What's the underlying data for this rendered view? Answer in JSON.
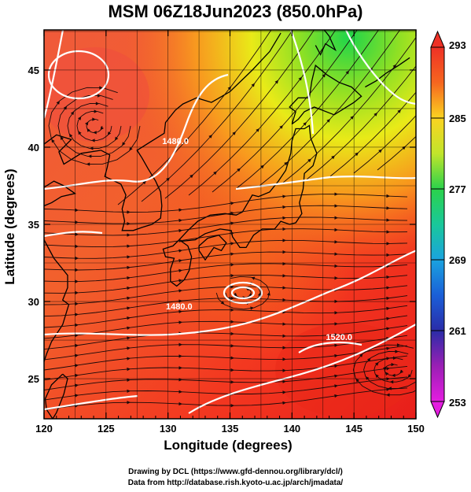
{
  "title": "MSM 06Z18Jun2023 (850.0hPa)",
  "credit_line1": "Drawing by DCL (https://www.gfd-dennou.org/library/dcl/)",
  "credit_line2": "Data from http://database.rish.kyoto-u.ac.jp/arch/jmadata/",
  "chart_data": {
    "type": "heatmap",
    "xlabel": "Longitude (degrees)",
    "ylabel": "Latitude  (degrees)",
    "xlim": [
      120,
      150
    ],
    "ylim": [
      22.4,
      47.6
    ],
    "x_ticks": [
      120,
      125,
      130,
      135,
      140,
      145,
      150
    ],
    "y_ticks": [
      25,
      30,
      35,
      40,
      45
    ],
    "grid": true,
    "colorbar": {
      "min": 253,
      "max": 293,
      "tick_values": [
        293,
        285,
        277,
        269,
        261,
        253
      ],
      "tick_labels": [
        "293",
        "285",
        "277",
        "269",
        "261",
        "253"
      ]
    },
    "contour_labels": [
      {
        "text": "1480.0",
        "lon": 130.6,
        "lat": 40.2
      },
      {
        "text": "1480.0",
        "lon": 130.9,
        "lat": 29.5
      },
      {
        "text": "1520.0",
        "lon": 143.8,
        "lat": 27.5
      }
    ]
  }
}
